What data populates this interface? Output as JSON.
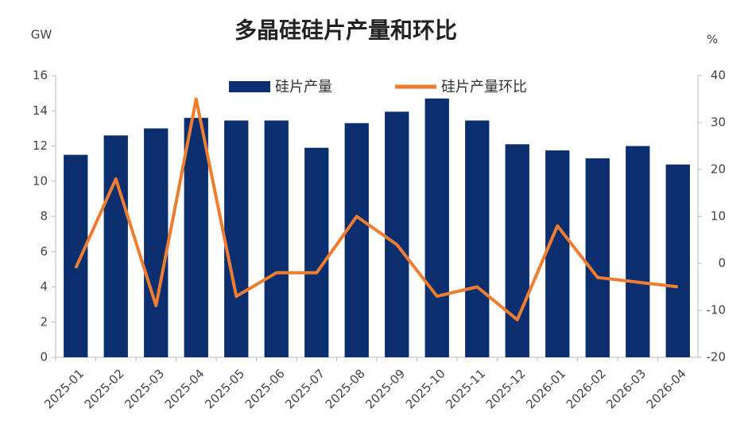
{
  "chart_data": {
    "type": "bar-line",
    "title": "多晶硅硅片产量和环比",
    "y_label": "GW",
    "y2_label": "%",
    "categories": [
      "2025-01",
      "2025-02",
      "2025-03",
      "2025-04",
      "2025-05",
      "2025-06",
      "2025-07",
      "2025-08",
      "2025-09",
      "2025-10",
      "2025-11",
      "2025-12",
      "2026-01",
      "2026-02",
      "2026-03",
      "2026-04"
    ],
    "series": [
      {
        "name": "硅片产量",
        "type": "bar",
        "color": "#0b2f6e",
        "values": [
          11.5,
          12.6,
          13.0,
          13.6,
          13.45,
          13.45,
          11.9,
          13.3,
          13.95,
          14.7,
          13.45,
          12.1,
          11.75,
          11.3,
          12.0,
          10.95
        ]
      },
      {
        "name": "硅片产量环比",
        "type": "line",
        "axis": "y2",
        "color": "#ed7d31",
        "values": [
          -1,
          18,
          -9,
          35,
          -7,
          -2,
          -2,
          10,
          4,
          -7,
          -5,
          -12,
          8,
          -3,
          -4,
          -5
        ]
      }
    ],
    "ylim": [
      0,
      16
    ],
    "yticks": [
      0,
      2,
      4,
      6,
      8,
      10,
      12,
      14,
      16
    ],
    "y2lim": [
      -20,
      40
    ],
    "y2ticks": [
      -20,
      -10,
      0,
      10,
      20,
      30,
      40
    ]
  }
}
